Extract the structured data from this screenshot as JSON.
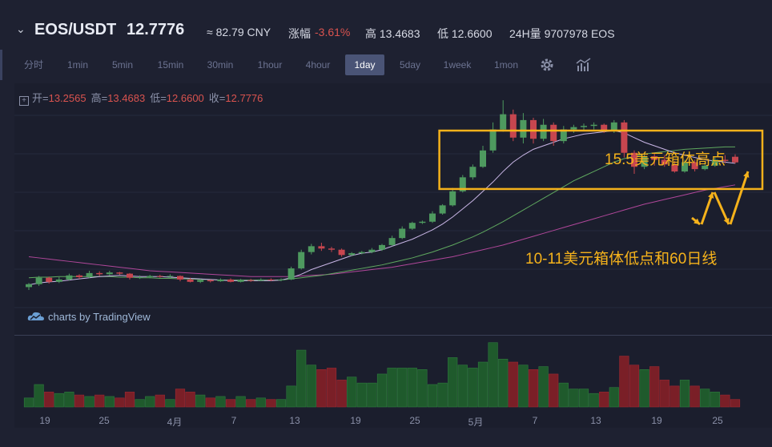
{
  "header": {
    "pair": "EOS/USDT",
    "price": "12.7776",
    "cny": "≈ 82.79 CNY",
    "change_label": "涨幅",
    "change_value": "-3.61%",
    "high": "高 13.4683",
    "low": "低 12.6600",
    "volume": "24H量 9707978 EOS"
  },
  "toolbar": {
    "timeframes": [
      "分时",
      "1min",
      "5min",
      "15min",
      "30min",
      "1hour",
      "4hour",
      "1day",
      "5day",
      "1week",
      "1mon"
    ],
    "active": "1day",
    "icons": [
      "gear-icon",
      "indicator-icon"
    ]
  },
  "ohlc": {
    "open_label": "开=",
    "open": "13.2565",
    "high_label": "高=",
    "high": "13.4683",
    "low_label": "低=",
    "low": "12.6600",
    "close_label": "收=",
    "close": "12.7776"
  },
  "watermark": "charts by TradingView",
  "annotations": {
    "box_high": "15.5美元箱体高点",
    "box_low": "10-11美元箱体低点和60日线"
  },
  "x_axis": [
    "19",
    "25",
    "4月",
    "7",
    "13",
    "19",
    "25",
    "5月",
    "7",
    "13",
    "19",
    "25"
  ],
  "colors": {
    "up": "#4e9a5f",
    "down": "#c7464f",
    "box": "#f5b21b",
    "ma_short": "#c9b6e6",
    "ma_mid": "#5fa85f",
    "ma_long": "#b0479a"
  },
  "chart_data": {
    "type": "candlestick",
    "candles": [
      [
        2.1,
        2.35,
        1.85,
        2.45
      ],
      [
        2.35,
        2.9,
        2.2,
        3.05
      ],
      [
        2.9,
        2.55,
        2.4,
        3.0
      ],
      [
        2.55,
        2.75,
        2.45,
        2.95
      ],
      [
        2.75,
        3.1,
        2.65,
        3.25
      ],
      [
        3.1,
        2.95,
        2.8,
        3.2
      ],
      [
        2.95,
        3.3,
        2.85,
        3.5
      ],
      [
        3.3,
        3.2,
        3.05,
        3.45
      ],
      [
        3.2,
        3.35,
        3.1,
        3.5
      ],
      [
        3.35,
        3.25,
        3.15,
        3.4
      ],
      [
        3.25,
        2.9,
        2.75,
        3.3
      ],
      [
        2.9,
        2.95,
        2.8,
        3.1
      ],
      [
        2.95,
        3.05,
        2.85,
        3.15
      ],
      [
        3.05,
        3.0,
        2.9,
        3.15
      ],
      [
        3.0,
        3.05,
        2.9,
        3.2
      ],
      [
        3.05,
        2.75,
        2.6,
        3.1
      ],
      [
        2.75,
        2.55,
        2.5,
        2.9
      ],
      [
        2.55,
        2.7,
        2.45,
        2.8
      ],
      [
        2.7,
        2.6,
        2.5,
        2.75
      ],
      [
        2.6,
        2.75,
        2.55,
        2.85
      ],
      [
        2.75,
        2.55,
        2.5,
        2.85
      ],
      [
        2.55,
        2.7,
        2.5,
        2.8
      ],
      [
        2.7,
        2.65,
        2.55,
        2.8
      ],
      [
        2.65,
        2.75,
        2.6,
        2.85
      ],
      [
        2.75,
        2.7,
        2.6,
        2.85
      ],
      [
        2.7,
        2.75,
        2.6,
        2.85
      ],
      [
        2.75,
        3.7,
        2.7,
        3.85
      ],
      [
        3.7,
        5.1,
        3.6,
        5.3
      ],
      [
        5.1,
        5.6,
        4.9,
        5.8
      ],
      [
        5.6,
        5.4,
        5.2,
        5.9
      ],
      [
        5.4,
        5.3,
        5.1,
        5.55
      ],
      [
        5.3,
        4.85,
        4.7,
        5.4
      ],
      [
        4.85,
        5.0,
        4.75,
        5.1
      ],
      [
        5.0,
        5.1,
        4.9,
        5.2
      ],
      [
        5.1,
        5.3,
        5.0,
        5.45
      ],
      [
        5.3,
        5.7,
        5.2,
        5.8
      ],
      [
        5.7,
        6.3,
        5.6,
        6.5
      ],
      [
        6.3,
        7.1,
        6.2,
        7.3
      ],
      [
        7.1,
        7.6,
        7.0,
        7.7
      ],
      [
        7.6,
        7.7,
        7.5,
        7.8
      ],
      [
        7.7,
        8.4,
        7.6,
        8.6
      ],
      [
        8.4,
        9.1,
        8.3,
        9.2
      ],
      [
        9.1,
        10.3,
        9.0,
        10.6
      ],
      [
        10.3,
        11.5,
        10.2,
        11.7
      ],
      [
        11.5,
        12.4,
        11.3,
        12.6
      ],
      [
        12.4,
        13.8,
        12.3,
        14.2
      ],
      [
        13.8,
        15.6,
        13.6,
        16.2
      ],
      [
        15.6,
        16.9,
        15.4,
        18.1
      ],
      [
        16.9,
        14.9,
        14.6,
        17.3
      ],
      [
        14.9,
        16.4,
        14.4,
        17.0
      ],
      [
        16.4,
        14.8,
        14.4,
        16.6
      ],
      [
        14.8,
        16.0,
        14.6,
        16.5
      ],
      [
        16.0,
        14.6,
        14.2,
        16.2
      ],
      [
        14.6,
        15.6,
        14.4,
        15.9
      ],
      [
        15.6,
        15.8,
        15.3,
        16.0
      ],
      [
        15.8,
        15.9,
        15.5,
        16.1
      ],
      [
        15.9,
        16.0,
        15.6,
        16.2
      ],
      [
        16.0,
        15.5,
        15.3,
        16.1
      ],
      [
        15.5,
        16.2,
        15.3,
        16.4
      ],
      [
        16.2,
        13.6,
        13.2,
        16.4
      ],
      [
        13.6,
        12.4,
        11.8,
        13.8
      ],
      [
        12.4,
        13.3,
        12.2,
        13.6
      ],
      [
        13.3,
        13.0,
        12.5,
        13.6
      ],
      [
        13.0,
        12.6,
        12.4,
        13.4
      ],
      [
        12.6,
        12.0,
        11.9,
        12.9
      ],
      [
        12.0,
        12.8,
        11.9,
        13.0
      ],
      [
        12.8,
        12.2,
        12.0,
        13.0
      ],
      [
        12.2,
        12.5,
        12.1,
        12.8
      ],
      [
        12.5,
        13.0,
        12.4,
        13.2
      ],
      [
        13.0,
        12.9,
        12.7,
        13.4
      ],
      [
        13.26,
        12.78,
        12.66,
        13.47
      ]
    ],
    "volume": [
      6,
      15,
      10,
      9,
      10,
      8,
      7,
      8,
      7,
      6,
      10,
      5,
      7,
      8,
      5,
      12,
      10,
      8,
      6,
      7,
      5,
      7,
      5,
      6,
      5,
      5,
      14,
      38,
      28,
      25,
      26,
      18,
      20,
      16,
      16,
      22,
      26,
      26,
      26,
      25,
      15,
      16,
      33,
      28,
      26,
      30,
      43,
      32,
      30,
      28,
      25,
      27,
      22,
      16,
      12,
      12,
      9,
      10,
      13,
      34,
      28,
      25,
      27,
      18,
      14,
      18,
      14,
      12,
      10,
      8,
      5
    ],
    "ma_short": [
      2.3,
      2.45,
      2.55,
      2.6,
      2.7,
      2.8,
      2.9,
      3.0,
      3.05,
      3.1,
      3.05,
      3.0,
      3.0,
      3.0,
      2.95,
      2.9,
      2.85,
      2.8,
      2.75,
      2.7,
      2.65,
      2.65,
      2.65,
      2.65,
      2.65,
      2.7,
      2.9,
      3.2,
      3.6,
      3.9,
      4.2,
      4.5,
      4.8,
      5.0,
      5.1,
      5.3,
      5.6,
      5.9,
      6.2,
      6.6,
      7.0,
      7.5,
      8.1,
      8.8,
      9.5,
      10.3,
      11.1,
      12.0,
      12.8,
      13.4,
      13.9,
      14.2,
      14.5,
      14.8,
      15.0,
      15.2,
      15.3,
      15.4,
      15.5,
      15.3,
      14.9,
      14.5,
      14.2,
      13.9,
      13.6,
      13.4,
      13.2,
      13.0,
      12.9,
      12.8,
      12.7
    ],
    "ma_mid": [
      2.9,
      2.95,
      2.95,
      3.0,
      3.0,
      3.0,
      3.0,
      3.0,
      3.0,
      2.95,
      2.95,
      2.9,
      2.9,
      2.85,
      2.85,
      2.8,
      2.8,
      2.75,
      2.75,
      2.7,
      2.7,
      2.7,
      2.7,
      2.7,
      2.7,
      2.7,
      2.8,
      2.9,
      3.0,
      3.1,
      3.25,
      3.4,
      3.55,
      3.7,
      3.85,
      4.0,
      4.2,
      4.4,
      4.6,
      4.85,
      5.1,
      5.4,
      5.7,
      6.05,
      6.4,
      6.8,
      7.25,
      7.7,
      8.2,
      8.7,
      9.2,
      9.7,
      10.2,
      10.7,
      11.2,
      11.6,
      12.0,
      12.4,
      12.8,
      13.1,
      13.3,
      13.5,
      13.6,
      13.7,
      13.8,
      13.9,
      13.95,
      14.0,
      14.05,
      14.1,
      14.1
    ],
    "ma_long": [
      4.7,
      4.6,
      4.5,
      4.4,
      4.3,
      4.2,
      4.1,
      4.0,
      3.9,
      3.8,
      3.7,
      3.6,
      3.5,
      3.45,
      3.4,
      3.35,
      3.3,
      3.25,
      3.2,
      3.15,
      3.1,
      3.05,
      3.0,
      3.0,
      3.0,
      3.0,
      3.0,
      3.05,
      3.1,
      3.15,
      3.2,
      3.3,
      3.4,
      3.5,
      3.6,
      3.7,
      3.8,
      3.95,
      4.1,
      4.25,
      4.4,
      4.55,
      4.7,
      4.9,
      5.1,
      5.3,
      5.5,
      5.7,
      5.95,
      6.2,
      6.45,
      6.7,
      6.95,
      7.2,
      7.45,
      7.7,
      7.95,
      8.2,
      8.45,
      8.7,
      8.95,
      9.2,
      9.4,
      9.6,
      9.8,
      10.0,
      10.2,
      10.4,
      10.55,
      10.7,
      10.85
    ],
    "box": {
      "high": 15.5,
      "low": 10.5
    }
  }
}
